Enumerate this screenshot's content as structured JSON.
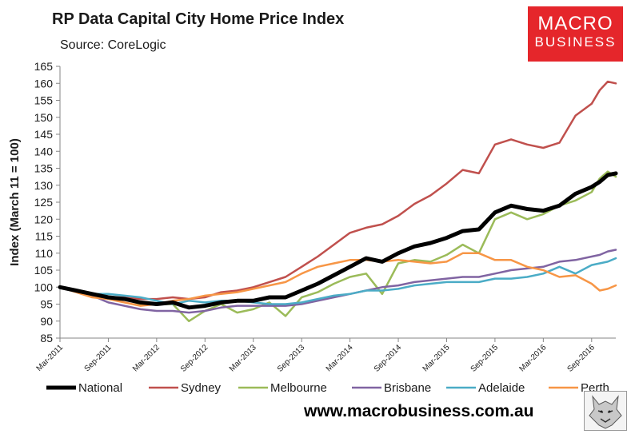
{
  "title": "RP Data Capital City Home Price Index",
  "subtitle": "Source: CoreLogic",
  "logo": {
    "line1": "MACRO",
    "line2": "BUSINESS"
  },
  "website": "www.macrobusiness.com.au",
  "colors": {
    "National": "#000000",
    "Sydney": "#c0504d",
    "Melbourne": "#9bbb59",
    "Brisbane": "#8064a2",
    "Adelaide": "#4bacc6",
    "Perth": "#f79646",
    "logo_bg": "#e5262b"
  },
  "chart_data": {
    "type": "line",
    "title": "RP Data Capital City Home Price Index",
    "ylabel": "Index (March 11 = 100)",
    "xlabel": "",
    "ylim": [
      85,
      165
    ],
    "yticks": [
      85,
      90,
      95,
      100,
      105,
      110,
      115,
      120,
      125,
      130,
      135,
      140,
      145,
      150,
      155,
      160,
      165
    ],
    "xlim": [
      "2011-03",
      "2016-12"
    ],
    "x_tick_labels": [
      "Mar-2011",
      "Sep-2011",
      "Mar-2012",
      "Sep-2012",
      "Mar-2013",
      "Sep-2013",
      "Mar-2014",
      "Sep-2014",
      "Mar-2015",
      "Sep-2015",
      "Mar-2016",
      "Sep-2016"
    ],
    "grid": false,
    "legend": "bottom",
    "series": [
      {
        "name": "National",
        "points": [
          [
            "2011-03",
            100
          ],
          [
            "2011-05",
            99
          ],
          [
            "2011-07",
            98
          ],
          [
            "2011-09",
            97
          ],
          [
            "2011-11",
            96.5
          ],
          [
            "2012-01",
            95.5
          ],
          [
            "2012-03",
            95
          ],
          [
            "2012-05",
            95.5
          ],
          [
            "2012-07",
            94
          ],
          [
            "2012-09",
            94.5
          ],
          [
            "2012-11",
            95.5
          ],
          [
            "2013-01",
            96
          ],
          [
            "2013-03",
            96
          ],
          [
            "2013-05",
            97
          ],
          [
            "2013-07",
            97
          ],
          [
            "2013-09",
            99
          ],
          [
            "2013-11",
            101
          ],
          [
            "2014-01",
            103.5
          ],
          [
            "2014-03",
            106
          ],
          [
            "2014-05",
            108.5
          ],
          [
            "2014-07",
            107.5
          ],
          [
            "2014-09",
            110
          ],
          [
            "2014-11",
            112
          ],
          [
            "2015-01",
            113
          ],
          [
            "2015-03",
            114.5
          ],
          [
            "2015-05",
            116.5
          ],
          [
            "2015-07",
            117
          ],
          [
            "2015-09",
            122
          ],
          [
            "2015-11",
            124
          ],
          [
            "2016-01",
            123
          ],
          [
            "2016-03",
            122.5
          ],
          [
            "2016-05",
            124
          ],
          [
            "2016-07",
            127.5
          ],
          [
            "2016-09",
            129.5
          ],
          [
            "2016-10",
            131
          ],
          [
            "2016-11",
            133
          ],
          [
            "2016-12",
            133.5
          ]
        ]
      },
      {
        "name": "Sydney",
        "points": [
          [
            "2011-03",
            100
          ],
          [
            "2011-05",
            99
          ],
          [
            "2011-07",
            97.5
          ],
          [
            "2011-09",
            97
          ],
          [
            "2011-11",
            97
          ],
          [
            "2012-01",
            96.5
          ],
          [
            "2012-03",
            96.5
          ],
          [
            "2012-05",
            97
          ],
          [
            "2012-07",
            96.5
          ],
          [
            "2012-09",
            97
          ],
          [
            "2012-11",
            98.5
          ],
          [
            "2013-01",
            99
          ],
          [
            "2013-03",
            100
          ],
          [
            "2013-05",
            101.5
          ],
          [
            "2013-07",
            103
          ],
          [
            "2013-09",
            106
          ],
          [
            "2013-11",
            109
          ],
          [
            "2014-01",
            112.5
          ],
          [
            "2014-03",
            116
          ],
          [
            "2014-05",
            117.5
          ],
          [
            "2014-07",
            118.5
          ],
          [
            "2014-09",
            121
          ],
          [
            "2014-11",
            124.5
          ],
          [
            "2015-01",
            127
          ],
          [
            "2015-03",
            130.5
          ],
          [
            "2015-05",
            134.5
          ],
          [
            "2015-07",
            133.5
          ],
          [
            "2015-09",
            142
          ],
          [
            "2015-11",
            143.5
          ],
          [
            "2016-01",
            142
          ],
          [
            "2016-03",
            141
          ],
          [
            "2016-05",
            142.5
          ],
          [
            "2016-07",
            150.5
          ],
          [
            "2016-09",
            154
          ],
          [
            "2016-10",
            158
          ],
          [
            "2016-11",
            160.5
          ],
          [
            "2016-12",
            160
          ]
        ]
      },
      {
        "name": "Melbourne",
        "points": [
          [
            "2011-03",
            100
          ],
          [
            "2011-05",
            99
          ],
          [
            "2011-07",
            97.5
          ],
          [
            "2011-09",
            96.5
          ],
          [
            "2011-11",
            96.5
          ],
          [
            "2012-01",
            95
          ],
          [
            "2012-03",
            95
          ],
          [
            "2012-05",
            95
          ],
          [
            "2012-07",
            90
          ],
          [
            "2012-09",
            93
          ],
          [
            "2012-11",
            95
          ],
          [
            "2013-01",
            92.5
          ],
          [
            "2013-03",
            93.5
          ],
          [
            "2013-05",
            95.5
          ],
          [
            "2013-07",
            91.5
          ],
          [
            "2013-09",
            97
          ],
          [
            "2013-11",
            98.5
          ],
          [
            "2014-01",
            101
          ],
          [
            "2014-03",
            103
          ],
          [
            "2014-05",
            104
          ],
          [
            "2014-07",
            98
          ],
          [
            "2014-09",
            107
          ],
          [
            "2014-11",
            108
          ],
          [
            "2015-01",
            107.5
          ],
          [
            "2015-03",
            109.5
          ],
          [
            "2015-05",
            112.5
          ],
          [
            "2015-07",
            110
          ],
          [
            "2015-09",
            120
          ],
          [
            "2015-11",
            122
          ],
          [
            "2016-01",
            120
          ],
          [
            "2016-03",
            121.5
          ],
          [
            "2016-05",
            124
          ],
          [
            "2016-07",
            125.5
          ],
          [
            "2016-09",
            128
          ],
          [
            "2016-10",
            132
          ],
          [
            "2016-11",
            134
          ],
          [
            "2016-12",
            132.5
          ]
        ]
      },
      {
        "name": "Brisbane",
        "points": [
          [
            "2011-03",
            100
          ],
          [
            "2011-05",
            99
          ],
          [
            "2011-07",
            97.5
          ],
          [
            "2011-09",
            95.5
          ],
          [
            "2011-11",
            94.5
          ],
          [
            "2012-01",
            93.5
          ],
          [
            "2012-03",
            93
          ],
          [
            "2012-05",
            93
          ],
          [
            "2012-07",
            92.5
          ],
          [
            "2012-09",
            93
          ],
          [
            "2012-11",
            94
          ],
          [
            "2013-01",
            94.5
          ],
          [
            "2013-03",
            94.5
          ],
          [
            "2013-05",
            94.5
          ],
          [
            "2013-07",
            94.5
          ],
          [
            "2013-09",
            95
          ],
          [
            "2013-11",
            96
          ],
          [
            "2014-01",
            97
          ],
          [
            "2014-03",
            98
          ],
          [
            "2014-05",
            99
          ],
          [
            "2014-07",
            100
          ],
          [
            "2014-09",
            100.5
          ],
          [
            "2014-11",
            101.5
          ],
          [
            "2015-01",
            102
          ],
          [
            "2015-03",
            102.5
          ],
          [
            "2015-05",
            103
          ],
          [
            "2015-07",
            103
          ],
          [
            "2015-09",
            104
          ],
          [
            "2015-11",
            105
          ],
          [
            "2016-01",
            105.5
          ],
          [
            "2016-03",
            106
          ],
          [
            "2016-05",
            107.5
          ],
          [
            "2016-07",
            108
          ],
          [
            "2016-09",
            109
          ],
          [
            "2016-10",
            109.5
          ],
          [
            "2016-11",
            110.5
          ],
          [
            "2016-12",
            111
          ]
        ]
      },
      {
        "name": "Adelaide",
        "points": [
          [
            "2011-03",
            100
          ],
          [
            "2011-05",
            99
          ],
          [
            "2011-07",
            98
          ],
          [
            "2011-09",
            98
          ],
          [
            "2011-11",
            97.5
          ],
          [
            "2012-01",
            97
          ],
          [
            "2012-03",
            96
          ],
          [
            "2012-05",
            95
          ],
          [
            "2012-07",
            96
          ],
          [
            "2012-09",
            95.5
          ],
          [
            "2012-11",
            96
          ],
          [
            "2013-01",
            96
          ],
          [
            "2013-03",
            95.5
          ],
          [
            "2013-05",
            95
          ],
          [
            "2013-07",
            95
          ],
          [
            "2013-09",
            95.5
          ],
          [
            "2013-11",
            96.5
          ],
          [
            "2014-01",
            97.5
          ],
          [
            "2014-03",
            98
          ],
          [
            "2014-05",
            99
          ],
          [
            "2014-07",
            99
          ],
          [
            "2014-09",
            99.5
          ],
          [
            "2014-11",
            100.5
          ],
          [
            "2015-01",
            101
          ],
          [
            "2015-03",
            101.5
          ],
          [
            "2015-05",
            101.5
          ],
          [
            "2015-07",
            101.5
          ],
          [
            "2015-09",
            102.5
          ],
          [
            "2015-11",
            102.5
          ],
          [
            "2016-01",
            103
          ],
          [
            "2016-03",
            104
          ],
          [
            "2016-05",
            106
          ],
          [
            "2016-07",
            104
          ],
          [
            "2016-09",
            106.5
          ],
          [
            "2016-10",
            107
          ],
          [
            "2016-11",
            107.5
          ],
          [
            "2016-12",
            108.5
          ]
        ]
      },
      {
        "name": "Perth",
        "points": [
          [
            "2011-03",
            100
          ],
          [
            "2011-05",
            98.5
          ],
          [
            "2011-07",
            97
          ],
          [
            "2011-09",
            96.5
          ],
          [
            "2011-11",
            95.5
          ],
          [
            "2012-01",
            94.5
          ],
          [
            "2012-03",
            95
          ],
          [
            "2012-05",
            96
          ],
          [
            "2012-07",
            96.5
          ],
          [
            "2012-09",
            97.5
          ],
          [
            "2012-11",
            98
          ],
          [
            "2013-01",
            98.5
          ],
          [
            "2013-03",
            99.5
          ],
          [
            "2013-05",
            100.5
          ],
          [
            "2013-07",
            101.5
          ],
          [
            "2013-09",
            104
          ],
          [
            "2013-11",
            106
          ],
          [
            "2014-01",
            107
          ],
          [
            "2014-03",
            108
          ],
          [
            "2014-05",
            108
          ],
          [
            "2014-07",
            107.5
          ],
          [
            "2014-09",
            108
          ],
          [
            "2014-11",
            107.5
          ],
          [
            "2015-01",
            107
          ],
          [
            "2015-03",
            107.5
          ],
          [
            "2015-05",
            110
          ],
          [
            "2015-07",
            110
          ],
          [
            "2015-09",
            108
          ],
          [
            "2015-11",
            108
          ],
          [
            "2016-01",
            106
          ],
          [
            "2016-03",
            105
          ],
          [
            "2016-05",
            103
          ],
          [
            "2016-07",
            103.5
          ],
          [
            "2016-09",
            101
          ],
          [
            "2016-10",
            99
          ],
          [
            "2016-11",
            99.5
          ],
          [
            "2016-12",
            100.5
          ]
        ]
      }
    ]
  }
}
